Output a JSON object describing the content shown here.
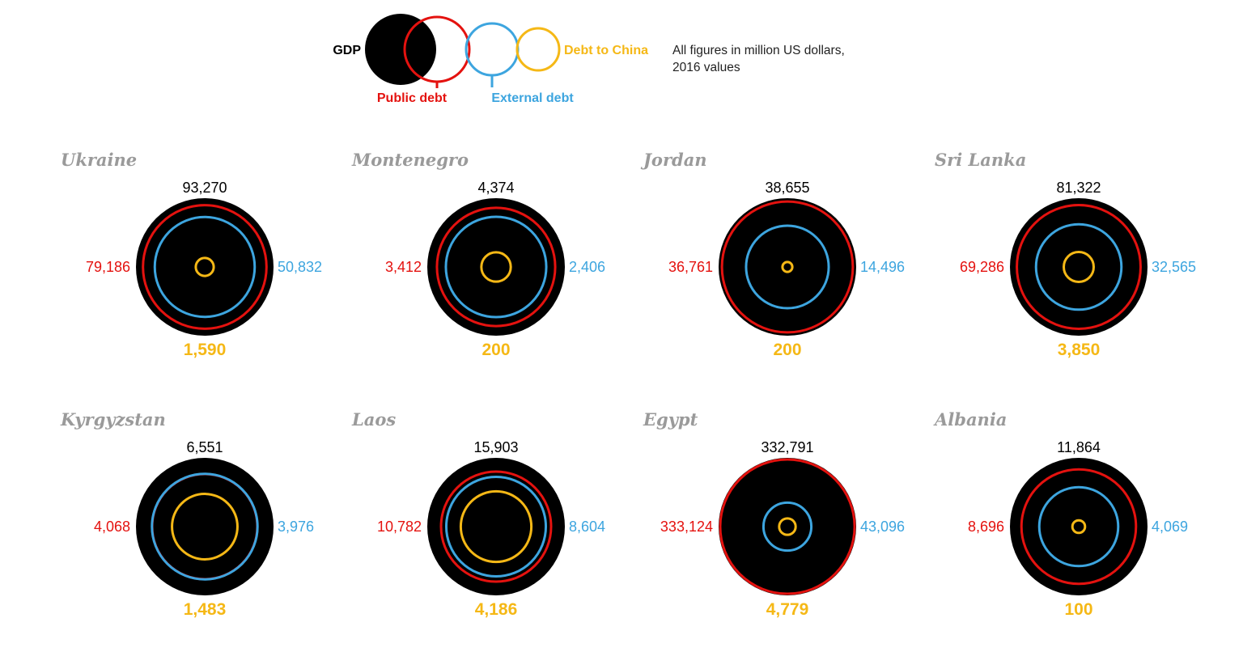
{
  "colors": {
    "gdp": "#000000",
    "public_debt": "#e4120f",
    "external_debt": "#3da5df",
    "debt_to_china": "#f5b816",
    "country_name": "#9a9a9a"
  },
  "legend": {
    "gdp": "GDP",
    "public_debt": "Public debt",
    "external_debt": "External debt",
    "debt_to_china": "Debt to China",
    "note_line1": "All figures in million US dollars,",
    "note_line2": "2016 values"
  },
  "chart_data": {
    "type": "nested-circles",
    "units": "million US dollars, 2016 values",
    "series": [
      "GDP",
      "Public debt",
      "External debt",
      "Debt to China"
    ],
    "countries": [
      {
        "name": "Ukraine",
        "gdp": 93270,
        "public_debt": 79186,
        "external_debt": 50832,
        "debt_to_china": 1590,
        "labels": {
          "gdp": "93,270",
          "public_debt": "79,186",
          "external_debt": "50,832",
          "debt_to_china": "1,590"
        }
      },
      {
        "name": "Montenegro",
        "gdp": 4374,
        "public_debt": 3412,
        "external_debt": 2406,
        "debt_to_china": 200,
        "labels": {
          "gdp": "4,374",
          "public_debt": "3,412",
          "external_debt": "2,406",
          "debt_to_china": "200"
        }
      },
      {
        "name": "Jordan",
        "gdp": 38655,
        "public_debt": 36761,
        "external_debt": 14496,
        "debt_to_china": 200,
        "labels": {
          "gdp": "38,655",
          "public_debt": "36,761",
          "external_debt": "14,496",
          "debt_to_china": "200"
        }
      },
      {
        "name": "Sri Lanka",
        "gdp": 81322,
        "public_debt": 69286,
        "external_debt": 32565,
        "debt_to_china": 3850,
        "labels": {
          "gdp": "81,322",
          "public_debt": "69,286",
          "external_debt": "32,565",
          "debt_to_china": "3,850"
        }
      },
      {
        "name": "Kyrgyzstan",
        "gdp": 6551,
        "public_debt": 4068,
        "external_debt": 3976,
        "debt_to_china": 1483,
        "labels": {
          "gdp": "6,551",
          "public_debt": "4,068",
          "external_debt": "3,976",
          "debt_to_china": "1,483"
        }
      },
      {
        "name": "Laos",
        "gdp": 15903,
        "public_debt": 10782,
        "external_debt": 8604,
        "debt_to_china": 4186,
        "labels": {
          "gdp": "15,903",
          "public_debt": "10,782",
          "external_debt": "8,604",
          "debt_to_china": "4,186"
        }
      },
      {
        "name": "Egypt",
        "gdp": 332791,
        "public_debt": 333124,
        "external_debt": 43096,
        "debt_to_china": 4779,
        "labels": {
          "gdp": "332,791",
          "public_debt": "333,124",
          "external_debt": "43,096",
          "debt_to_china": "4,779"
        }
      },
      {
        "name": "Albania",
        "gdp": 11864,
        "public_debt": 8696,
        "external_debt": 4069,
        "debt_to_china": 100,
        "labels": {
          "gdp": "11,864",
          "public_debt": "8,696",
          "external_debt": "4,069",
          "debt_to_china": "100"
        }
      }
    ]
  }
}
